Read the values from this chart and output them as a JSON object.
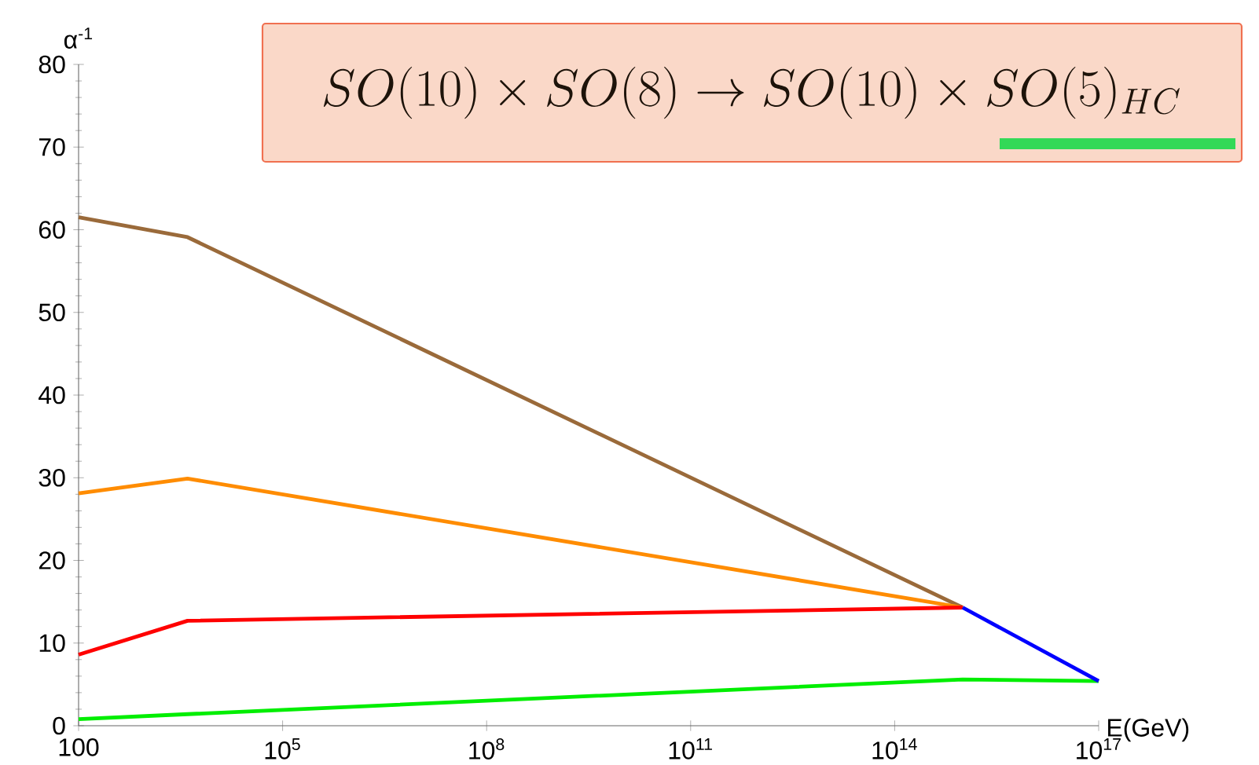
{
  "chart_data": {
    "type": "line",
    "title": "SO(10)\\times SO(8)\\to SO(10)\\times SO(5)_{HC}",
    "xlabel": "E(GeV)",
    "ylabel": "α$^{-1}$",
    "log": "x",
    "xlim": [
      100,
      1e+17
    ],
    "ylim": [
      0,
      80
    ],
    "xticks": [
      100,
      {
        "value": 100000.0,
        "label": "10$^{5}$"
      },
      {
        "value": 100000000.0,
        "label": "10$^{8}$"
      },
      {
        "value": 100000000000.0,
        "label": "10$^{11}$"
      },
      {
        "value": 100000000000000.0,
        "label": "10$^{14}$"
      },
      {
        "value": 1e+17,
        "label": "10$^{17}$"
      }
    ],
    "yticks": [
      0,
      10,
      20,
      30,
      40,
      50,
      60,
      70,
      80
    ],
    "series": [
      {
        "color": "#9a6a3a",
        "x": [
          100,
          4000,
          1000000000000000.0
        ],
        "values": [
          61.5,
          59.1,
          14.3
        ]
      },
      {
        "color": "#ff8c00",
        "x": [
          100,
          4000,
          1000000000000000.0
        ],
        "values": [
          28.1,
          29.9,
          14.3
        ]
      },
      {
        "color": "#ff0000",
        "x": [
          100,
          4000,
          1000000000000000.0
        ],
        "values": [
          8.6,
          12.7,
          14.3
        ]
      },
      {
        "color": "#00ee00",
        "x": [
          100,
          4000,
          1000000000000000.0,
          1e+17
        ],
        "values": [
          0.8,
          1.4,
          5.6,
          5.4
        ]
      },
      {
        "color": "#0000ff",
        "x": [
          1000000000000000.0,
          1e+17
        ],
        "values": [
          14.3,
          5.4
        ]
      }
    ]
  }
}
